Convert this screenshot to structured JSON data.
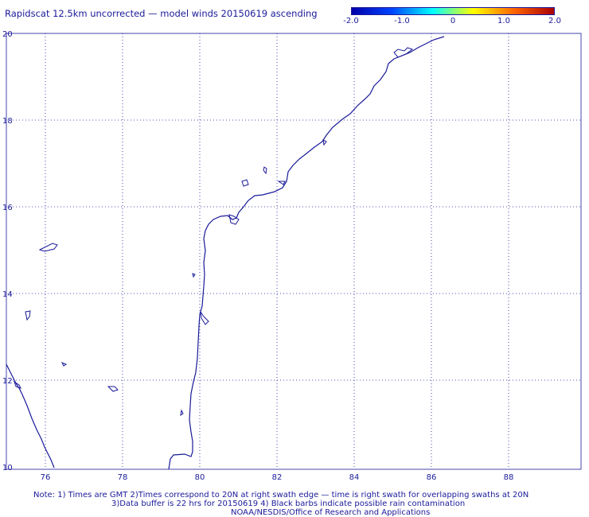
{
  "title": "Rapidscat 12.5km uncorrected — model winds 20150619 ascending",
  "colorbar": {
    "labels": [
      "-2.0",
      "-1.0",
      "0",
      "1.0",
      "2.0"
    ],
    "colors": [
      "#0000aa",
      "#0044ff",
      "#00ffff",
      "#ffff00",
      "#ff6600",
      "#aa0000"
    ]
  },
  "map": {
    "lon_ticks": [
      "76",
      "78",
      "80",
      "82",
      "84",
      "86",
      "88"
    ],
    "lat_ticks": [
      "20",
      "18",
      "16",
      "14",
      "12",
      "10"
    ],
    "coast_color": "#1a1a9a",
    "grid": "dotted"
  },
  "notes": {
    "line1": "Note: 1) Times are GMT 2)Times correspond to 20N at right swath edge — time is right swath for overlapping swaths at 20N",
    "line2": "3)Data buffer is 22 hrs for 20150619 4) Black barbs indicate possible rain contamination",
    "line3": "NOAA/NESDIS/Office of Research and Applications"
  }
}
